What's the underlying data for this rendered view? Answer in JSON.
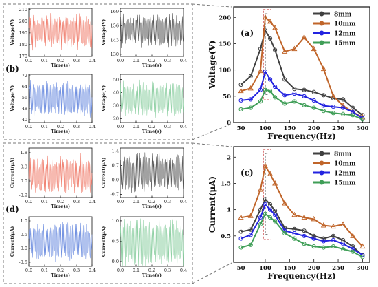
{
  "chart_data": [
    {
      "id": "a",
      "type": "line",
      "panel_label": "(a)",
      "xlabel": "Frequency(Hz)",
      "ylabel": "Voltage(V)",
      "xlim": [
        35,
        315
      ],
      "ylim": [
        0,
        220
      ],
      "xticks": [
        50,
        100,
        150,
        200,
        250,
        300
      ],
      "yticks": [
        0,
        50,
        100,
        150,
        200
      ],
      "x": [
        50,
        70,
        90,
        100,
        110,
        120,
        140,
        160,
        180,
        200,
        220,
        240,
        260,
        280,
        300
      ],
      "legend_position": "top-right",
      "series": [
        {
          "name": "8mm",
          "color": "#404040",
          "marker": "circle",
          "values": [
            72,
            88,
            140,
            175,
            160,
            138,
            82,
            64,
            62,
            58,
            52,
            46,
            44,
            28,
            14
          ]
        },
        {
          "name": "10mm",
          "color": "#c0652a",
          "marker": "triangle",
          "values": [
            60,
            65,
            98,
            200,
            192,
            180,
            135,
            140,
            162,
            140,
            102,
            50,
            32,
            20,
            10
          ]
        },
        {
          "name": "12mm",
          "color": "#2323e0",
          "marker": "circle",
          "values": [
            42,
            44,
            62,
            97,
            82,
            68,
            52,
            55,
            50,
            42,
            32,
            30,
            28,
            20,
            8
          ]
        },
        {
          "name": "15mm",
          "color": "#3f9e57",
          "marker": "circle",
          "values": [
            25,
            28,
            40,
            62,
            60,
            48,
            36,
            40,
            33,
            28,
            22,
            18,
            16,
            14,
            6
          ]
        }
      ],
      "highlight_x": [
        96,
        112
      ]
    },
    {
      "id": "c",
      "type": "line",
      "panel_label": "(c)",
      "xlabel": "Frequency(Hz)",
      "ylabel": "Current(μA)",
      "xlim": [
        35,
        315
      ],
      "ylim": [
        0,
        2.2
      ],
      "xticks": [
        50,
        100,
        150,
        200,
        250,
        300
      ],
      "yticks": [
        0.5,
        1.0,
        1.5,
        2.0
      ],
      "x": [
        50,
        70,
        90,
        100,
        110,
        120,
        140,
        160,
        180,
        200,
        220,
        240,
        260,
        280,
        300
      ],
      "legend_position": "top-right",
      "series": [
        {
          "name": "8mm",
          "color": "#404040",
          "marker": "circle",
          "values": [
            0.58,
            0.62,
            1.0,
            1.2,
            1.1,
            0.98,
            0.65,
            0.63,
            0.6,
            0.5,
            0.45,
            0.5,
            0.42,
            0.3,
            0.13
          ]
        },
        {
          "name": "10mm",
          "color": "#c0652a",
          "marker": "triangle",
          "values": [
            0.85,
            0.88,
            1.38,
            1.83,
            1.68,
            1.5,
            1.12,
            0.9,
            0.85,
            0.82,
            0.7,
            0.68,
            0.72,
            0.5,
            0.3
          ]
        },
        {
          "name": "12mm",
          "color": "#2323e0",
          "marker": "circle",
          "values": [
            0.45,
            0.52,
            0.85,
            1.1,
            1.0,
            0.9,
            0.6,
            0.55,
            0.5,
            0.45,
            0.4,
            0.42,
            0.35,
            0.25,
            0.14
          ]
        },
        {
          "name": "15mm",
          "color": "#3f9e57",
          "marker": "circle",
          "values": [
            0.28,
            0.33,
            0.72,
            0.92,
            0.85,
            0.78,
            0.55,
            0.45,
            0.35,
            0.3,
            0.28,
            0.3,
            0.25,
            0.2,
            0.1
          ]
        }
      ],
      "highlight_x": [
        96,
        112
      ]
    },
    {
      "id": "b1",
      "type": "line",
      "panel_label": "",
      "xlabel": "Time(s)",
      "ylabel": "Voltage(V)",
      "color": "#f08070",
      "center": 191,
      "amplitude": 13,
      "noise": 4,
      "seed": 11,
      "xlim": [
        0,
        0.4
      ],
      "ylim": [
        170,
        211
      ],
      "xticks": [
        0.0,
        0.1,
        0.2,
        0.3,
        0.4
      ],
      "yticks": [
        170,
        180,
        190,
        200,
        210
      ],
      "xtick_labels": [
        "0.0",
        "0.1",
        "0.2",
        "0.3",
        "0.4"
      ],
      "ytick_labels": [
        "170",
        "180",
        "190",
        "200",
        "210"
      ]
    },
    {
      "id": "b2",
      "type": "line",
      "panel_label": "",
      "xlabel": "Time(s)",
      "ylabel": "Voltage(V)",
      "color": "#555555",
      "center": 152,
      "amplitude": 14,
      "noise": 4,
      "seed": 23,
      "xlim": [
        0,
        0.4
      ],
      "ylim": [
        128,
        172
      ],
      "xticks": [
        0.0,
        0.1,
        0.2,
        0.3,
        0.4
      ],
      "yticks": [
        130,
        143,
        156,
        169
      ],
      "xtick_labels": [
        "0.0",
        "0.1",
        "0.2",
        "0.3",
        "0.4"
      ],
      "ytick_labels": [
        "130",
        "143",
        "156",
        "169"
      ]
    },
    {
      "id": "b3",
      "type": "line",
      "panel_label": "",
      "xlabel": "Time(s)",
      "ylabel": "Voltage(V)",
      "color": "#6f8fe0",
      "center": 55,
      "amplitude": 12,
      "noise": 3,
      "seed": 37,
      "xlim": [
        0,
        0.4
      ],
      "ylim": [
        38,
        73
      ],
      "xticks": [
        0.0,
        0.1,
        0.2,
        0.3,
        0.4
      ],
      "yticks": [
        40,
        48,
        56,
        64,
        72
      ],
      "xtick_labels": [
        "0.0",
        "0.1",
        "0.2",
        "0.3",
        "0.4"
      ],
      "ytick_labels": [
        "40",
        "48",
        "56",
        "64",
        "72"
      ]
    },
    {
      "id": "b4",
      "type": "line",
      "panel_label": "",
      "xlabel": "Time(s)",
      "ylabel": "Voltage(V)",
      "color": "#8fd0a4",
      "center": 35,
      "amplitude": 13,
      "noise": 3,
      "seed": 53,
      "xlim": [
        0,
        0.4
      ],
      "ylim": [
        17,
        54
      ],
      "xticks": [
        0.0,
        0.1,
        0.2,
        0.3,
        0.4
      ],
      "yticks": [
        20,
        30,
        40,
        50
      ],
      "xtick_labels": [
        "0.0",
        "0.1",
        "0.2",
        "0.3",
        "0.4"
      ],
      "ytick_labels": [
        "20",
        "30",
        "40",
        "50"
      ]
    },
    {
      "id": "d1",
      "type": "line",
      "panel_label": "",
      "xlabel": "Time(s)",
      "ylabel": "Current(μA)",
      "color": "#f08070",
      "center": 0.4,
      "amplitude": 1.1,
      "noise": 0.3,
      "seed": 71,
      "xlim": [
        0,
        0.4
      ],
      "ylim": [
        -1.05,
        2.1
      ],
      "xticks": [
        0.0,
        0.1,
        0.2,
        0.3,
        0.4
      ],
      "yticks": [
        -0.9,
        0.0,
        0.9,
        1.8
      ],
      "xtick_labels": [
        "0.0",
        "0.1",
        "0.2",
        "0.3",
        "0.4"
      ],
      "ytick_labels": [
        "-0.9",
        "0.0",
        "0.9",
        "1.8"
      ]
    },
    {
      "id": "d2",
      "type": "line",
      "panel_label": "",
      "xlabel": "Time(s)",
      "ylabel": "Current(μA)",
      "color": "#555555",
      "center": 0.35,
      "amplitude": 0.9,
      "noise": 0.25,
      "seed": 83,
      "xlim": [
        0,
        0.4
      ],
      "ylim": [
        -0.85,
        1.55
      ],
      "xticks": [
        0.0,
        0.1,
        0.2,
        0.3,
        0.4
      ],
      "yticks": [
        -0.7,
        0.0,
        0.7,
        1.4
      ],
      "xtick_labels": [
        "0.0",
        "0.1",
        "0.2",
        "0.3",
        "0.4"
      ],
      "ytick_labels": [
        "-0.7",
        "0.0",
        "0.7",
        "1.4"
      ]
    },
    {
      "id": "d3",
      "type": "line",
      "panel_label": "",
      "xlabel": "Time(s)",
      "ylabel": "Current(μA)",
      "color": "#6f8fe0",
      "center": 0.25,
      "amplitude": 0.65,
      "noise": 0.18,
      "seed": 97,
      "xlim": [
        0,
        0.4
      ],
      "ylim": [
        -0.65,
        1.15
      ],
      "xticks": [
        0.0,
        0.1,
        0.2,
        0.3,
        0.4
      ],
      "yticks": [
        -0.5,
        0.0,
        0.5,
        1.0
      ],
      "xtick_labels": [
        "0.0",
        "0.1",
        "0.2",
        "0.3",
        "0.4"
      ],
      "ytick_labels": [
        "-0.5",
        "0.0",
        "0.5",
        "1.0"
      ]
    },
    {
      "id": "d4",
      "type": "line",
      "panel_label": "",
      "xlabel": "Time(s)",
      "ylabel": "Current(μA)",
      "color": "#8fd0a4",
      "center": 0.45,
      "amplitude": 0.55,
      "noise": 0.15,
      "seed": 113,
      "xlim": [
        0,
        0.4
      ],
      "ylim": [
        -0.12,
        1.1
      ],
      "xticks": [
        0.0,
        0.1,
        0.2,
        0.3,
        0.4
      ],
      "yticks": [
        0.0,
        0.5,
        1.0
      ],
      "xtick_labels": [
        "0.0",
        "0.1",
        "0.2",
        "0.3",
        "0.4"
      ],
      "ytick_labels": [
        "0.0",
        "0.5",
        "1.0"
      ]
    }
  ],
  "group_labels": {
    "b": "(b)",
    "d": "(d)"
  },
  "colors": {
    "frame": "#777777",
    "axis": "#111111"
  }
}
